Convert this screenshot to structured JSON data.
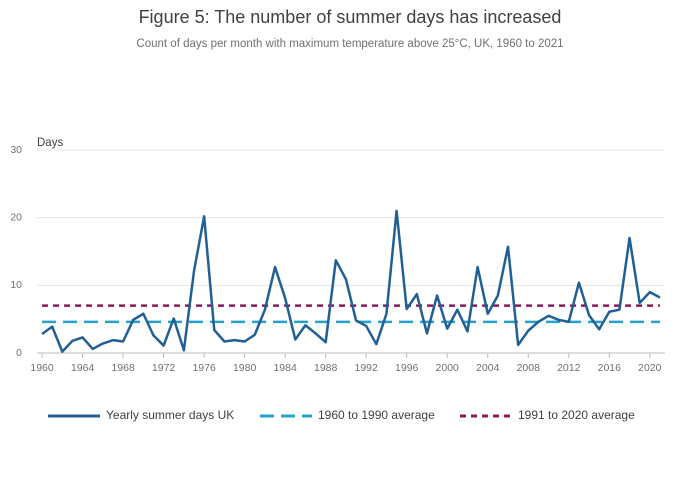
{
  "chart_data": {
    "type": "line",
    "title": "Figure 5: The number of summer days has increased",
    "subtitle": "Count of days per month with maximum temperature above 25°C, UK, 1960 to 2021",
    "y_label": "Days",
    "x": [
      1960,
      1961,
      1962,
      1963,
      1964,
      1965,
      1966,
      1967,
      1968,
      1969,
      1970,
      1971,
      1972,
      1973,
      1974,
      1975,
      1976,
      1977,
      1978,
      1979,
      1980,
      1981,
      1982,
      1983,
      1984,
      1985,
      1986,
      1987,
      1988,
      1989,
      1990,
      1991,
      1992,
      1993,
      1994,
      1995,
      1996,
      1997,
      1998,
      1999,
      2000,
      2001,
      2002,
      2003,
      2004,
      2005,
      2006,
      2007,
      2008,
      2009,
      2010,
      2011,
      2012,
      2013,
      2014,
      2015,
      2016,
      2017,
      2018,
      2019,
      2020,
      2021
    ],
    "series": [
      {
        "name": "Yearly summer days UK",
        "color": "#206095",
        "dash": "solid",
        "values": [
          2.8,
          3.9,
          0.2,
          1.8,
          2.3,
          0.6,
          1.4,
          1.9,
          1.7,
          4.9,
          5.8,
          2.6,
          1.1,
          5.1,
          0.4,
          12.1,
          20.2,
          3.4,
          1.7,
          1.9,
          1.7,
          2.7,
          6.4,
          12.7,
          8.1,
          2.0,
          4.1,
          2.9,
          1.6,
          13.7,
          10.9,
          4.8,
          4.0,
          1.3,
          5.8,
          21.0,
          6.5,
          8.7,
          2.9,
          8.5,
          3.6,
          6.4,
          3.2,
          12.7,
          5.8,
          8.5,
          15.7,
          1.2,
          3.3,
          4.6,
          5.5,
          4.9,
          4.6,
          10.4,
          5.6,
          3.5,
          6.1,
          6.4,
          17.0,
          7.4,
          9.0,
          8.2
        ]
      },
      {
        "name": "1960 to 1990 average",
        "color": "#27a0cc",
        "dash": "long",
        "values": [
          4.6,
          4.6,
          4.6,
          4.6,
          4.6,
          4.6,
          4.6,
          4.6,
          4.6,
          4.6,
          4.6,
          4.6,
          4.6,
          4.6,
          4.6,
          4.6,
          4.6,
          4.6,
          4.6,
          4.6,
          4.6,
          4.6,
          4.6,
          4.6,
          4.6,
          4.6,
          4.6,
          4.6,
          4.6,
          4.6,
          4.6,
          4.6,
          4.6,
          4.6,
          4.6,
          4.6,
          4.6,
          4.6,
          4.6,
          4.6,
          4.6,
          4.6,
          4.6,
          4.6,
          4.6,
          4.6,
          4.6,
          4.6,
          4.6,
          4.6,
          4.6,
          4.6,
          4.6,
          4.6,
          4.6,
          4.6,
          4.6,
          4.6,
          4.6,
          4.6,
          4.6,
          4.6
        ]
      },
      {
        "name": "1991 to 2020 average",
        "color": "#871a5b",
        "dash": "short",
        "values": [
          7.0,
          7.0,
          7.0,
          7.0,
          7.0,
          7.0,
          7.0,
          7.0,
          7.0,
          7.0,
          7.0,
          7.0,
          7.0,
          7.0,
          7.0,
          7.0,
          7.0,
          7.0,
          7.0,
          7.0,
          7.0,
          7.0,
          7.0,
          7.0,
          7.0,
          7.0,
          7.0,
          7.0,
          7.0,
          7.0,
          7.0,
          7.0,
          7.0,
          7.0,
          7.0,
          7.0,
          7.0,
          7.0,
          7.0,
          7.0,
          7.0,
          7.0,
          7.0,
          7.0,
          7.0,
          7.0,
          7.0,
          7.0,
          7.0,
          7.0,
          7.0,
          7.0,
          7.0,
          7.0,
          7.0,
          7.0,
          7.0,
          7.0,
          7.0,
          7.0,
          7.0,
          7.0
        ]
      }
    ],
    "xlim": [
      1959.5,
      2021.5
    ],
    "xticks": [
      1960,
      1964,
      1968,
      1972,
      1976,
      1980,
      1984,
      1988,
      1992,
      1996,
      2000,
      2004,
      2008,
      2012,
      2016,
      2020
    ],
    "ylim": [
      0,
      30
    ],
    "yticks": [
      0,
      10,
      20,
      30
    ],
    "grid": true,
    "legend": "bottom"
  }
}
